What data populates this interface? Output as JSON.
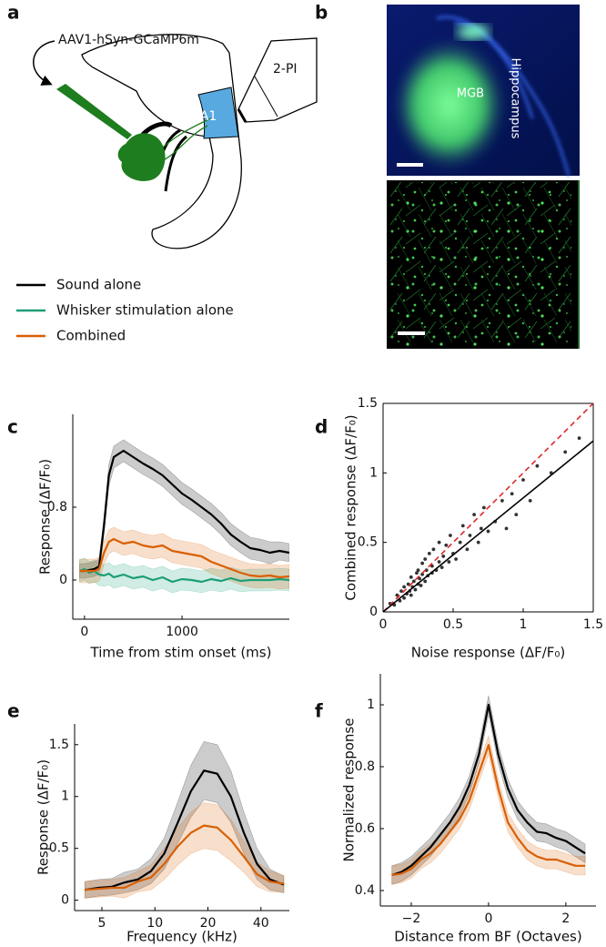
{
  "panels": [
    "a",
    "b",
    "c",
    "d",
    "e",
    "f"
  ],
  "diagram": {
    "virus": "AAV1-hSyn-GCaMP6m",
    "microscope": "2-PI",
    "region": "A1"
  },
  "histology": {
    "nucleus": "MGB",
    "landmark": "Hippocampus"
  },
  "chart_data": [
    {
      "type": "line",
      "xlabel": "Time from stim onset (ms)",
      "ylabel": "Response  (ΔF/F₀)",
      "x": [
        -50,
        0,
        50,
        100,
        150,
        200,
        250,
        300,
        400,
        500,
        600,
        700,
        800,
        900,
        1000,
        1100,
        1200,
        1300,
        1400,
        1500,
        1600,
        1700,
        1800,
        1900,
        2000,
        2100
      ],
      "series": [
        {
          "name": "Sound alone",
          "color": "#000000",
          "values": [
            0.1,
            0.1,
            0.11,
            0.12,
            0.15,
            0.6,
            1.15,
            1.35,
            1.42,
            1.35,
            1.28,
            1.22,
            1.15,
            1.05,
            0.95,
            0.88,
            0.8,
            0.72,
            0.62,
            0.5,
            0.42,
            0.35,
            0.33,
            0.3,
            0.32,
            0.3
          ],
          "errors": [
            0.08,
            0.08,
            0.08,
            0.08,
            0.08,
            0.1,
            0.12,
            0.12,
            0.12,
            0.12,
            0.12,
            0.12,
            0.12,
            0.12,
            0.12,
            0.12,
            0.12,
            0.12,
            0.12,
            0.12,
            0.12,
            0.12,
            0.12,
            0.12,
            0.1,
            0.1
          ]
        },
        {
          "name": "Whisker stimulation alone",
          "color": "#1b9e77",
          "values": [
            0.1,
            0.12,
            0.08,
            0.1,
            0.06,
            0.05,
            0.07,
            0.03,
            0.06,
            0.02,
            0.04,
            0.0,
            0.03,
            -0.02,
            0.01,
            0.0,
            -0.02,
            0.01,
            -0.01,
            0.02,
            -0.01,
            0.0,
            0.0,
            0.0,
            0.01,
            0.0
          ],
          "errors": [
            0.12,
            0.12,
            0.12,
            0.12,
            0.12,
            0.12,
            0.12,
            0.12,
            0.12,
            0.12,
            0.12,
            0.12,
            0.12,
            0.12,
            0.12,
            0.12,
            0.12,
            0.12,
            0.12,
            0.12,
            0.12,
            0.12,
            0.12,
            0.12,
            0.12,
            0.12
          ]
        },
        {
          "name": "Combined",
          "color": "#d95f02",
          "values": [
            0.1,
            0.1,
            0.1,
            0.1,
            0.12,
            0.3,
            0.42,
            0.45,
            0.4,
            0.42,
            0.38,
            0.36,
            0.38,
            0.32,
            0.3,
            0.28,
            0.26,
            0.2,
            0.16,
            0.12,
            0.08,
            0.05,
            0.04,
            0.05,
            0.03,
            0.04
          ],
          "errors": [
            0.13,
            0.13,
            0.13,
            0.13,
            0.13,
            0.13,
            0.13,
            0.13,
            0.13,
            0.13,
            0.13,
            0.13,
            0.13,
            0.13,
            0.13,
            0.13,
            0.13,
            0.13,
            0.13,
            0.13,
            0.13,
            0.13,
            0.13,
            0.13,
            0.13,
            0.13
          ]
        }
      ],
      "xlim": [
        -120,
        2100
      ],
      "ylim": [
        -0.43,
        1.82
      ],
      "xticks": [
        0,
        1000
      ],
      "yticks": [
        0,
        0.8
      ]
    },
    {
      "type": "scatter",
      "xlabel": "Noise response (ΔF/F₀)",
      "ylabel": "Combined response (ΔF/F₀)",
      "color": "#333333",
      "box": true,
      "x": [
        0.05,
        0.08,
        0.1,
        0.12,
        0.13,
        0.15,
        0.15,
        0.17,
        0.18,
        0.19,
        0.2,
        0.2,
        0.21,
        0.22,
        0.23,
        0.24,
        0.25,
        0.25,
        0.26,
        0.27,
        0.28,
        0.28,
        0.3,
        0.3,
        0.31,
        0.32,
        0.33,
        0.35,
        0.35,
        0.36,
        0.38,
        0.4,
        0.4,
        0.42,
        0.43,
        0.45,
        0.47,
        0.48,
        0.5,
        0.52,
        0.55,
        0.57,
        0.6,
        0.62,
        0.65,
        0.68,
        0.7,
        0.72,
        0.75,
        0.8,
        0.85,
        0.88,
        0.92,
        0.95,
        1.0,
        1.05,
        1.1,
        1.2,
        1.3,
        1.4
      ],
      "values": [
        0.06,
        0.05,
        0.12,
        0.08,
        0.15,
        0.1,
        0.18,
        0.13,
        0.2,
        0.15,
        0.12,
        0.25,
        0.18,
        0.22,
        0.16,
        0.28,
        0.2,
        0.3,
        0.24,
        0.19,
        0.35,
        0.27,
        0.22,
        0.38,
        0.3,
        0.26,
        0.42,
        0.28,
        0.33,
        0.45,
        0.3,
        0.36,
        0.5,
        0.32,
        0.4,
        0.48,
        0.36,
        0.55,
        0.42,
        0.38,
        0.5,
        0.62,
        0.45,
        0.55,
        0.7,
        0.5,
        0.6,
        0.75,
        0.58,
        0.65,
        0.8,
        0.6,
        0.85,
        0.7,
        0.95,
        0.8,
        1.05,
        1.0,
        1.15,
        1.25
      ],
      "lines": [
        {
          "slope": 1,
          "intercept": 0,
          "color": "#e0262b",
          "dashed": true
        },
        {
          "slope": 0.82,
          "intercept": 0,
          "color": "#000000",
          "dashed": false
        }
      ],
      "xlim": [
        0,
        1.5
      ],
      "ylim": [
        0,
        1.5
      ],
      "xticks": [
        0,
        0.5,
        1,
        1.5
      ],
      "yticks": [
        0,
        0.5,
        1,
        1.5
      ]
    },
    {
      "type": "line",
      "xlabel": "Frequency (kHz)",
      "ylabel": "Response (ΔF/F₀)",
      "xscale": "log",
      "x": [
        4,
        4.8,
        5.7,
        6.7,
        8,
        9.5,
        11.3,
        13.5,
        16,
        19,
        22.6,
        27,
        32,
        38,
        45,
        54
      ],
      "series": [
        {
          "color": "#000000",
          "values": [
            0.1,
            0.12,
            0.13,
            0.17,
            0.2,
            0.28,
            0.45,
            0.75,
            1.05,
            1.25,
            1.22,
            1.0,
            0.65,
            0.35,
            0.2,
            0.15
          ],
          "errors": [
            0.08,
            0.08,
            0.08,
            0.1,
            0.1,
            0.12,
            0.15,
            0.2,
            0.25,
            0.28,
            0.28,
            0.25,
            0.2,
            0.15,
            0.1,
            0.08
          ]
        },
        {
          "color": "#d95f02",
          "values": [
            0.1,
            0.11,
            0.12,
            0.12,
            0.18,
            0.22,
            0.35,
            0.52,
            0.65,
            0.72,
            0.7,
            0.58,
            0.42,
            0.25,
            0.18,
            0.16
          ],
          "errors": [
            0.08,
            0.08,
            0.08,
            0.1,
            0.1,
            0.12,
            0.15,
            0.18,
            0.2,
            0.22,
            0.22,
            0.2,
            0.15,
            0.12,
            0.1,
            0.08
          ]
        }
      ],
      "xlim": [
        3.5,
        58
      ],
      "ylim": [
        -0.1,
        1.7
      ],
      "xticks": [
        5,
        10,
        20,
        40
      ],
      "yticks": [
        0,
        0.5,
        1,
        1.5
      ]
    },
    {
      "type": "line",
      "xlabel": "Distance from BF (Octaves)",
      "ylabel": "Normalized response",
      "x": [
        -2.5,
        -2.25,
        -2,
        -1.75,
        -1.5,
        -1.25,
        -1,
        -0.75,
        -0.5,
        -0.25,
        0,
        0.25,
        0.5,
        0.75,
        1,
        1.25,
        1.5,
        1.75,
        2,
        2.25,
        2.5
      ],
      "series": [
        {
          "color": "#000000",
          "values": [
            0.45,
            0.46,
            0.48,
            0.51,
            0.54,
            0.58,
            0.62,
            0.67,
            0.74,
            0.84,
            1.0,
            0.84,
            0.73,
            0.66,
            0.62,
            0.59,
            0.585,
            0.57,
            0.56,
            0.54,
            0.52
          ],
          "errors": [
            0.03,
            0.03,
            0.03,
            0.03,
            0.03,
            0.03,
            0.03,
            0.03,
            0.03,
            0.03,
            0.03,
            0.03,
            0.03,
            0.03,
            0.03,
            0.03,
            0.03,
            0.03,
            0.03,
            0.03,
            0.03
          ]
        },
        {
          "color": "#d95f02",
          "values": [
            0.45,
            0.455,
            0.47,
            0.5,
            0.52,
            0.55,
            0.59,
            0.63,
            0.69,
            0.78,
            0.87,
            0.73,
            0.62,
            0.57,
            0.53,
            0.51,
            0.5,
            0.5,
            0.49,
            0.48,
            0.48
          ],
          "errors": [
            0.03,
            0.03,
            0.03,
            0.03,
            0.03,
            0.03,
            0.03,
            0.03,
            0.03,
            0.03,
            0.03,
            0.03,
            0.03,
            0.03,
            0.03,
            0.03,
            0.03,
            0.03,
            0.03,
            0.03,
            0.03
          ]
        }
      ],
      "xlim": [
        -2.8,
        2.78
      ],
      "ylim": [
        0.35,
        1.1
      ],
      "xticks": [
        {
          "value": -2,
          "label": "−2"
        },
        0,
        2
      ],
      "yticks": [
        0.4,
        0.6,
        0.8,
        1
      ]
    }
  ]
}
